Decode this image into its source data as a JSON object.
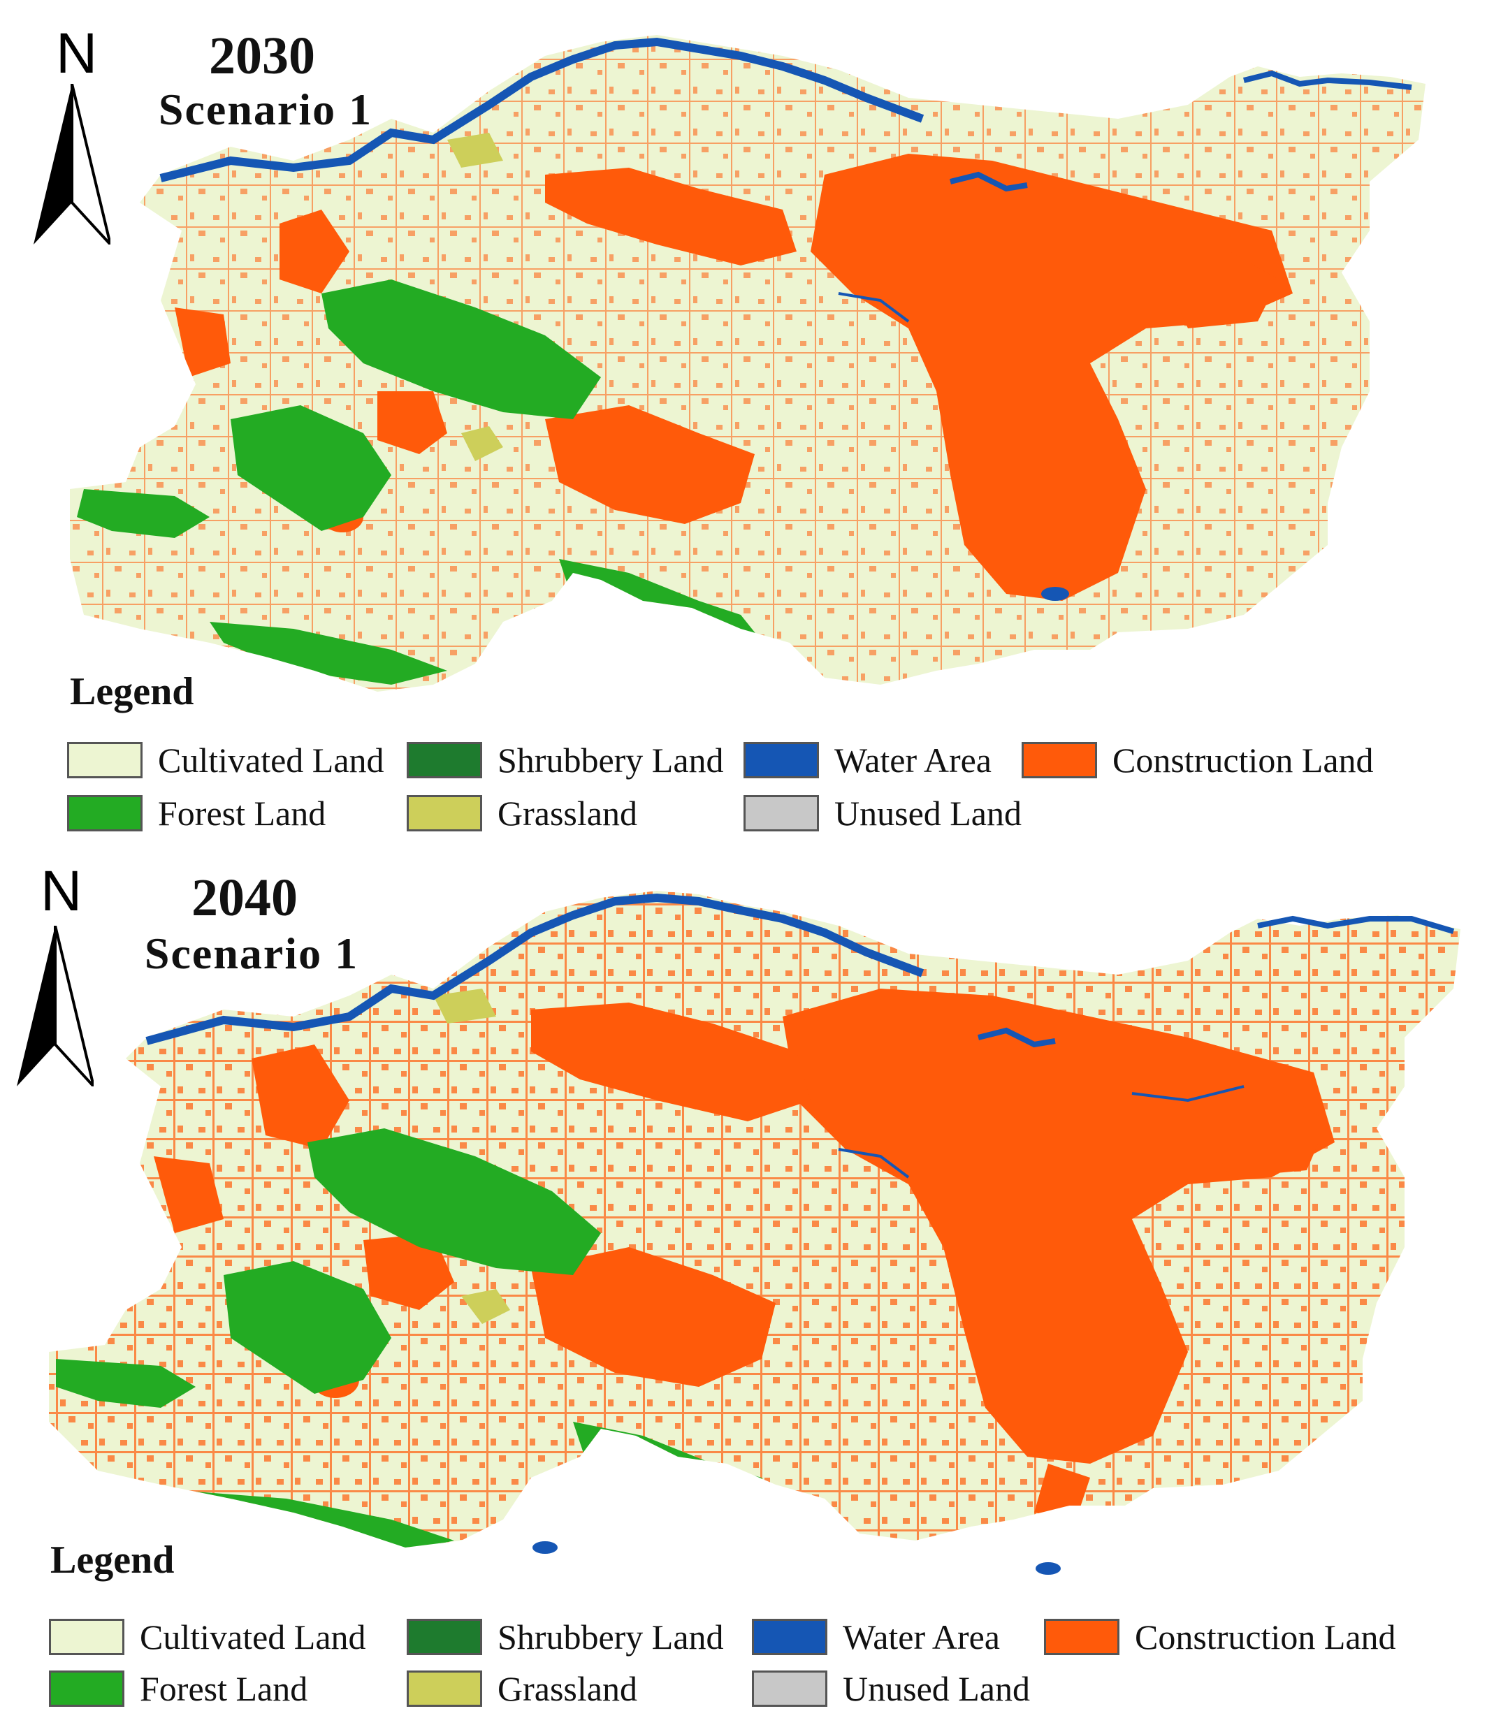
{
  "panels": [
    {
      "year": "2030",
      "scenario": "Scenario 1",
      "north": "N",
      "legend_title": "Legend"
    },
    {
      "year": "2040",
      "scenario": "Scenario 1",
      "north": "N",
      "legend_title": "Legend"
    }
  ],
  "legend": {
    "items": [
      {
        "label": "Cultivated Land",
        "color": "#EDF5D2"
      },
      {
        "label": "Shrubbery Land",
        "color": "#1E7B2E"
      },
      {
        "label": "Water Area",
        "color": "#1556B4"
      },
      {
        "label": "Construction Land",
        "color": "#FF5A0A"
      },
      {
        "label": "Forest Land",
        "color": "#23AB23"
      },
      {
        "label": "Grassland",
        "color": "#CDCF5A"
      },
      {
        "label": "Unused Land",
        "color": "#C8C8C8"
      }
    ]
  }
}
